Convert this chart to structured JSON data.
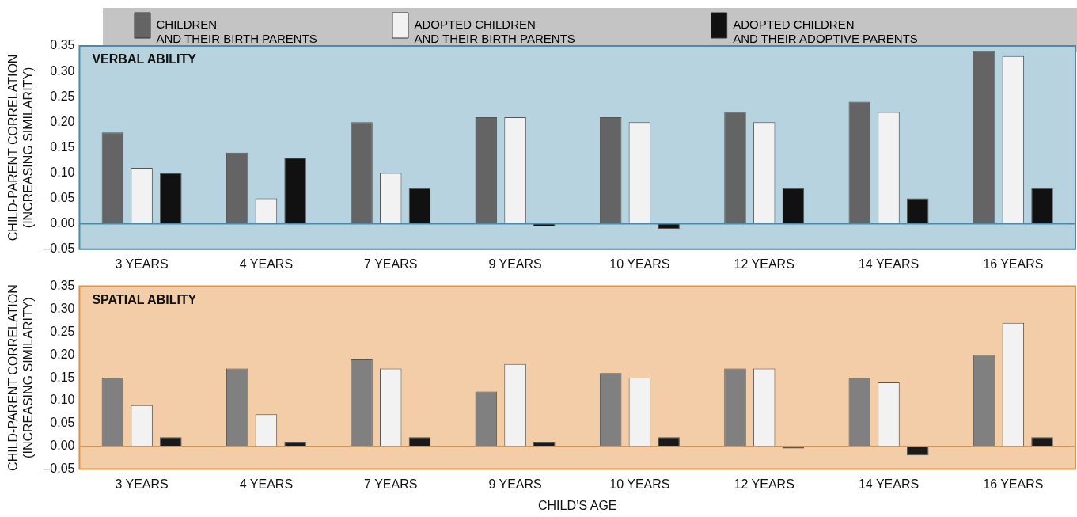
{
  "chart_data": [
    {
      "type": "bar",
      "title": "VERBAL ABILITY",
      "ylabel": "CHILD-PARENT CORRELATION\n(INCREASING SIMILARITY)",
      "categories": [
        "3 YEARS",
        "4 YEARS",
        "7 YEARS",
        "9 YEARS",
        "10 YEARS",
        "12 YEARS",
        "14 YEARS",
        "16 YEARS"
      ],
      "series": [
        {
          "name": "CHILDREN\nAND THEIR BIRTH PARENTS",
          "color": "#646464",
          "values": [
            0.18,
            0.14,
            0.2,
            0.21,
            0.21,
            0.22,
            0.24,
            0.34
          ]
        },
        {
          "name": "ADOPTED CHILDREN\nAND THEIR BIRTH PARENTS",
          "color": "#f2f2f2",
          "values": [
            0.11,
            0.05,
            0.1,
            0.21,
            0.2,
            0.2,
            0.22,
            0.33
          ]
        },
        {
          "name": "ADOPTED CHILDREN\nAND THEIR ADOPTIVE PARENTS",
          "color": "#111111",
          "values": [
            0.1,
            0.13,
            0.07,
            -0.005,
            -0.01,
            0.07,
            0.05,
            0.07
          ]
        }
      ],
      "ylim": [
        -0.05,
        0.35
      ],
      "yticks": [
        {
          "value": -0.05,
          "label": "–0.05"
        },
        {
          "value": 0,
          "label": "0.00"
        },
        {
          "value": 0.05,
          "label": "0.05"
        },
        {
          "value": 0.1,
          "label": "0.10"
        },
        {
          "value": 0.15,
          "label": "0.15"
        },
        {
          "value": 0.2,
          "label": "0.20"
        },
        {
          "value": 0.25,
          "label": "0.25"
        },
        {
          "value": 0.3,
          "label": "0.30"
        },
        {
          "value": 0.35,
          "label": "0.35"
        }
      ],
      "ref_lines": [
        {
          "axis": "y",
          "value": 0,
          "color": "#4a8ca8"
        }
      ],
      "grid": false,
      "legend": "top"
    },
    {
      "type": "bar",
      "title": "SPATIAL ABILITY",
      "xlabel": "CHILD’S AGE",
      "ylabel": "CHILD-PARENT CORRELATION\n(INCREASING SIMILARITY)",
      "categories": [
        "3 YEARS",
        "4 YEARS",
        "7 YEARS",
        "9 YEARS",
        "10 YEARS",
        "12 YEARS",
        "14 YEARS",
        "16 YEARS"
      ],
      "series": [
        {
          "color": "#808080",
          "values": [
            0.15,
            0.17,
            0.19,
            0.12,
            0.16,
            0.17,
            0.15,
            0.2
          ]
        },
        {
          "color": "#f2f2f2",
          "values": [
            0.09,
            0.07,
            0.17,
            0.18,
            0.15,
            0.17,
            0.14,
            0.27
          ]
        },
        {
          "color": "#1a1a1a",
          "values": [
            0.02,
            0.01,
            0.02,
            0.01,
            0.02,
            -0.005,
            -0.02,
            0.02
          ]
        }
      ],
      "ylim": [
        -0.05,
        0.35
      ],
      "yticks": [
        {
          "value": -0.05,
          "label": "–0.05"
        },
        {
          "value": 0,
          "label": "0.00"
        },
        {
          "value": 0.05,
          "label": "0.05"
        },
        {
          "value": 0.1,
          "label": "0.10"
        },
        {
          "value": 0.15,
          "label": "0.15"
        },
        {
          "value": 0.2,
          "label": "0.20"
        },
        {
          "value": 0.25,
          "label": "0.25"
        },
        {
          "value": 0.3,
          "label": "0.30"
        },
        {
          "value": 0.35,
          "label": "0.35"
        }
      ],
      "ref_lines": [
        {
          "axis": "y",
          "value": 0,
          "color": "#e0923e"
        }
      ],
      "grid": false
    }
  ]
}
